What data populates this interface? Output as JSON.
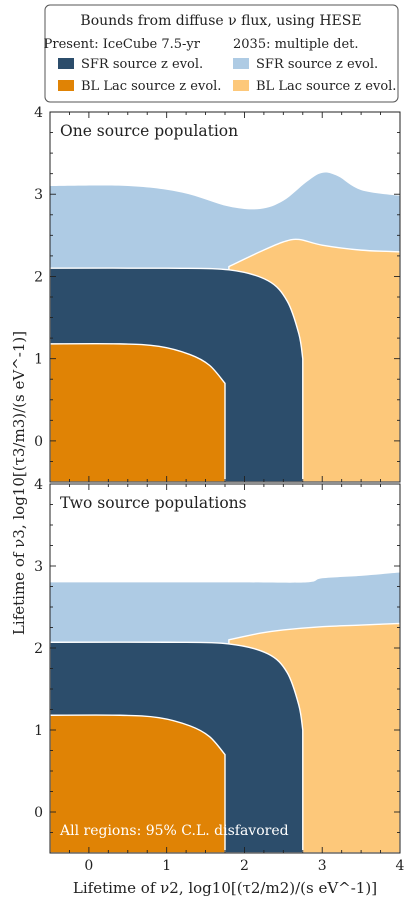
{
  "legend": {
    "title": "Bounds from diffuse ν flux, using HESE",
    "col1_header": "Present: IceCube 7.5-yr",
    "col2_header": "2035: multiple det.",
    "items": [
      {
        "label": "SFR source z evol.",
        "color": "#2c4d6b"
      },
      {
        "label": "SFR source z evol.",
        "color": "#aecbe4"
      },
      {
        "label": "BL Lac source z evol.",
        "color": "#e08305"
      },
      {
        "label": "BL Lac source z evol.",
        "color": "#fdc87a"
      }
    ]
  },
  "chart_data": [
    {
      "type": "area",
      "title": "One source population",
      "xlabel": "Lifetime of ν2, log10[(τ2/m2)/(s eV^-1)]",
      "ylabel": "Lifetime of ν3, log10[(τ3/m3)/(s eV^-1)]",
      "xlim": [
        -0.5,
        4.0
      ],
      "ylim": [
        -0.5,
        4.0
      ],
      "xticks": [
        "0",
        "1",
        "2",
        "3",
        "4"
      ],
      "yticks": [
        "0",
        "1",
        "2",
        "3",
        "4"
      ],
      "series": [
        {
          "name": "Present: IceCube 7.5-yr, SFR source z evol.",
          "color": "#2c4d6b",
          "x": [
            -0.5,
            1.0,
            1.8,
            2.3,
            2.55,
            2.7,
            2.75
          ],
          "y_upper": [
            2.1,
            2.1,
            2.08,
            1.95,
            1.7,
            1.3,
            1.0
          ],
          "x_right": 2.75
        },
        {
          "name": "Present: IceCube 7.5-yr, BL Lac source z evol.",
          "color": "#e08305",
          "x": [
            -0.5,
            0.4,
            0.9,
            1.3,
            1.55,
            1.75
          ],
          "y_upper": [
            1.18,
            1.18,
            1.15,
            1.05,
            0.92,
            0.7
          ],
          "x_right": 1.75
        },
        {
          "name": "2035: multiple det., SFR source z evol.",
          "color": "#aecbe4",
          "x": [
            -0.5,
            0.5,
            1.2,
            1.8,
            2.2,
            2.5,
            2.8,
            3.0,
            3.2,
            3.5,
            4.0
          ],
          "y_upper": [
            3.1,
            3.1,
            3.02,
            2.85,
            2.82,
            2.92,
            3.15,
            3.26,
            3.22,
            3.05,
            2.98
          ]
        },
        {
          "name": "2035: multiple det., BL Lac source z evol.",
          "color": "#fdc87a",
          "x": [
            1.8,
            2.2,
            2.5,
            2.7,
            3.0,
            3.5,
            4.0
          ],
          "y_upper": [
            2.12,
            2.3,
            2.42,
            2.45,
            2.38,
            2.32,
            2.3
          ]
        }
      ]
    },
    {
      "type": "area",
      "title": "Two source populations",
      "xlabel": "Lifetime of ν2, log10[(τ2/m2)/(s eV^-1)]",
      "ylabel": "Lifetime of ν3, log10[(τ3/m3)/(s eV^-1)]",
      "xlim": [
        -0.5,
        4.0
      ],
      "ylim": [
        -0.5,
        4.0
      ],
      "xticks": [
        "0",
        "1",
        "2",
        "3",
        "4"
      ],
      "yticks": [
        "0",
        "1",
        "2",
        "3",
        "4"
      ],
      "annotation": "All regions: 95% C.L. disfavored",
      "series": [
        {
          "name": "Present: IceCube 7.5-yr, SFR source z evol.",
          "color": "#2c4d6b",
          "x": [
            -0.5,
            1.0,
            1.8,
            2.3,
            2.55,
            2.7,
            2.75
          ],
          "y_upper": [
            2.07,
            2.07,
            2.05,
            1.93,
            1.7,
            1.3,
            1.0
          ],
          "x_right": 2.75
        },
        {
          "name": "Present: IceCube 7.5-yr, BL Lac source z evol.",
          "color": "#e08305",
          "x": [
            -0.5,
            0.4,
            0.9,
            1.3,
            1.55,
            1.75
          ],
          "y_upper": [
            1.18,
            1.18,
            1.15,
            1.05,
            0.92,
            0.7
          ],
          "x_right": 1.75
        },
        {
          "name": "2035: multiple det., SFR source z evol.",
          "color": "#aecbe4",
          "x": [
            -0.5,
            1.0,
            2.0,
            2.8,
            3.0,
            3.5,
            4.0
          ],
          "y_upper": [
            2.8,
            2.8,
            2.8,
            2.8,
            2.85,
            2.88,
            2.92
          ]
        },
        {
          "name": "2035: multiple det., BL Lac source z evol.",
          "color": "#fdc87a",
          "x": [
            1.8,
            2.2,
            2.5,
            3.0,
            3.5,
            4.0
          ],
          "y_upper": [
            2.1,
            2.18,
            2.22,
            2.26,
            2.28,
            2.3
          ]
        }
      ]
    }
  ]
}
